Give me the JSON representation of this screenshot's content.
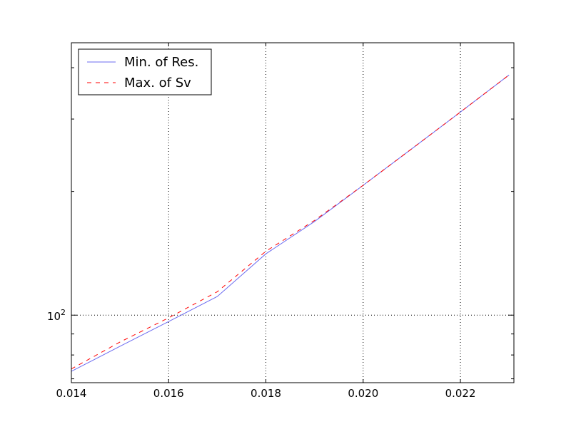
{
  "chart_data": {
    "type": "line",
    "title": "",
    "xlabel": "",
    "ylabel": "",
    "xscale": "linear",
    "yscale": "log",
    "xlim": [
      0.014,
      0.0231
    ],
    "ylim": [
      68.5,
      460
    ],
    "grid": true,
    "legend_position": "top-left",
    "x_ticks": [
      {
        "value": 0.014,
        "label": "0.014"
      },
      {
        "value": 0.016,
        "label": "0.016"
      },
      {
        "value": 0.018,
        "label": "0.018"
      },
      {
        "value": 0.02,
        "label": "0.020"
      },
      {
        "value": 0.022,
        "label": "0.022"
      }
    ],
    "y_major_ticks": [
      {
        "value": 100,
        "base": "10",
        "exponent": "2"
      }
    ],
    "y_minor_ticks": [
      70,
      80,
      90,
      200,
      300,
      400
    ],
    "series": [
      {
        "name": "Min. of Res.",
        "color": "#6b6bf0",
        "style": "solid",
        "x": [
          0.014,
          0.015,
          0.016,
          0.017,
          0.018,
          0.019,
          0.02,
          0.021,
          0.022,
          0.023
        ],
        "y": [
          73,
          84,
          96.5,
          111,
          141,
          169,
          207,
          254,
          312,
          384
        ]
      },
      {
        "name": "Max. of Sv",
        "color": "#ff0000",
        "style": "dashed",
        "x": [
          0.014,
          0.015,
          0.016,
          0.017,
          0.018,
          0.019,
          0.02,
          0.021,
          0.022,
          0.023
        ],
        "y": [
          74,
          86,
          98.5,
          114,
          143,
          170,
          207,
          254,
          312,
          384
        ]
      }
    ]
  }
}
